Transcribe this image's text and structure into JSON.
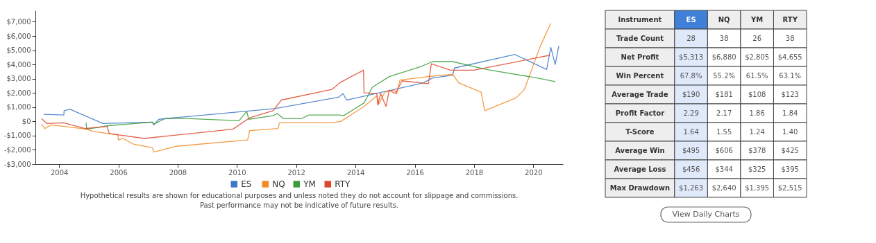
{
  "chart_data": [
    {
      "type": "line",
      "xlim": [
        2003.2,
        2021.0
      ],
      "xticks": [
        2004,
        2006,
        2008,
        2010,
        2012,
        2014,
        2016,
        2018,
        2020
      ],
      "ylim": [
        -3000,
        7800
      ],
      "yticks": [
        {
          "value": -3000,
          "label": "-$3,000"
        },
        {
          "value": -2000,
          "label": "-$2,000"
        },
        {
          "value": -1000,
          "label": "-$1,000"
        },
        {
          "value": 0,
          "label": "$0"
        },
        {
          "value": 1000,
          "label": "$1,000"
        },
        {
          "value": 2000,
          "label": "$2,000"
        },
        {
          "value": 3000,
          "label": "$3,000"
        },
        {
          "value": 4000,
          "label": "$4,000"
        },
        {
          "value": 5000,
          "label": "$5,000"
        },
        {
          "value": 6000,
          "label": "$6,000"
        },
        {
          "value": 7000,
          "label": "$7,000"
        }
      ],
      "grid": false,
      "legend": "bottom",
      "line_style": "solid",
      "marker": "none",
      "series": [
        {
          "name": "ES",
          "color": "#3b78c7",
          "x": [
            2003.48,
            2004.16,
            2004.17,
            2004.37,
            2005.48,
            2007.15,
            2007.19,
            2007.37,
            2011.28,
            2013.43,
            2013.58,
            2013.7,
            2016.28,
            2016.6,
            2017.28,
            2017.34,
            2019.38,
            2020.45,
            2020.59,
            2020.74,
            2020.86
          ],
          "values": [
            500,
            450,
            750,
            850,
            -150,
            -50,
            -250,
            150,
            900,
            1700,
            1950,
            1500,
            2700,
            3050,
            3250,
            3750,
            4700,
            3650,
            5200,
            4000,
            5300
          ]
        },
        {
          "name": "NQ",
          "color": "#f58a22",
          "x": [
            2003.41,
            2003.52,
            2003.73,
            2004.94,
            2005.12,
            2005.98,
            2006.0,
            2006.15,
            2006.51,
            2007.15,
            2007.19,
            2007.94,
            2010.36,
            2010.43,
            2011.39,
            2011.43,
            2013.18,
            2013.5,
            2014.29,
            2014.72,
            2014.78,
            2014.99,
            2015.32,
            2015.39,
            2015.5,
            2016.46,
            2017.28,
            2017.49,
            2018.24,
            2018.36,
            2019.42,
            2019.7,
            2020.24,
            2020.59
          ],
          "values": [
            -200,
            -500,
            -250,
            -550,
            -700,
            -950,
            -1300,
            -1200,
            -1600,
            -1850,
            -2150,
            -1750,
            -1300,
            -650,
            -500,
            -100,
            -100,
            0,
            1050,
            1800,
            1200,
            2050,
            2200,
            1950,
            2900,
            3150,
            3300,
            2700,
            2050,
            750,
            1650,
            2250,
            5300,
            6900
          ]
        },
        {
          "name": "YM",
          "color": "#3a9c3a",
          "x": [
            2004.91,
            2004.93,
            2005.66,
            2007.15,
            2007.19,
            2007.58,
            2008.29,
            2010.07,
            2010.33,
            2010.4,
            2011.22,
            2011.36,
            2011.57,
            2012.18,
            2012.43,
            2013.46,
            2013.6,
            2014.29,
            2014.57,
            2015.14,
            2016.21,
            2016.6,
            2017.28,
            2018.42,
            2020.13,
            2020.74
          ],
          "values": [
            -100,
            -550,
            -300,
            -50,
            -200,
            200,
            200,
            50,
            700,
            150,
            400,
            550,
            200,
            200,
            450,
            450,
            400,
            1300,
            2400,
            3150,
            3850,
            4200,
            4200,
            3650,
            3050,
            2800
          ]
        },
        {
          "name": "RTY",
          "color": "#e0452c",
          "x": [
            2003.41,
            2003.59,
            2004.16,
            2004.87,
            2005.62,
            2005.69,
            2006.87,
            2009.86,
            2010.43,
            2011.22,
            2011.5,
            2013.21,
            2013.5,
            2014.27,
            2014.29,
            2014.72,
            2014.75,
            2014.85,
            2015.03,
            2015.14,
            2015.35,
            2015.57,
            2016.46,
            2016.56,
            2017.21,
            2017.99,
            2020.56
          ],
          "values": [
            200,
            -150,
            -100,
            -500,
            -350,
            -850,
            -1200,
            -550,
            250,
            750,
            1500,
            2250,
            2750,
            3600,
            2000,
            1950,
            1150,
            1950,
            1050,
            2200,
            1950,
            2850,
            2650,
            4050,
            3600,
            3600,
            4650
          ]
        }
      ],
      "annotations": [
        "Hypothetical results are shown for educational purposes and unless noted they do not account for slippage and commissions.",
        "Past performance may not be indicative of future results."
      ]
    },
    {
      "type": "other",
      "annotations": [
        "Instrument",
        "ES",
        "NQ",
        "YM",
        "RTY",
        "Trade Count",
        "28",
        "38",
        "26",
        "38",
        "Net Profit",
        "$5,313",
        "$6,880",
        "$2,805",
        "$4,655",
        "Win Percent",
        "67.8%",
        "55.2%",
        "61.5%",
        "63.1%",
        "Average Trade",
        "$190",
        "$181",
        "$108",
        "$123",
        "Profit Factor",
        "2.29",
        "2.17",
        "1.86",
        "1.84",
        "T-Score",
        "1.64",
        "1.55",
        "1.24",
        "1.40",
        "Average Win",
        "$495",
        "$606",
        "$378",
        "$425",
        "Average Loss",
        "$456",
        "$344",
        "$325",
        "$395",
        "Max Drawdown",
        "$1,263",
        "$2,640",
        "$1,395",
        "$2,515",
        "View Daily Charts"
      ]
    }
  ]
}
